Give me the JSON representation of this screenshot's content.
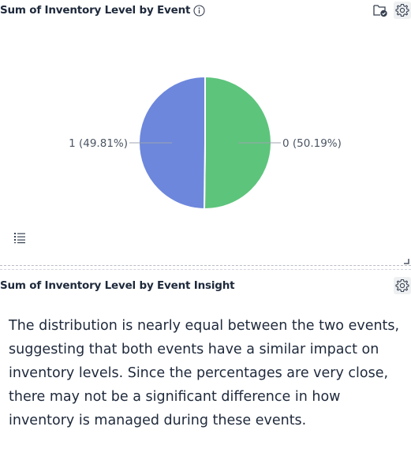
{
  "chart_panel": {
    "title": "Sum of Inventory Level by Event"
  },
  "chart_data": {
    "type": "pie",
    "title": "Sum of Inventory Level by Event",
    "slices": [
      {
        "label": "0",
        "percent": 50.19,
        "color": "#5dc47c",
        "display": "0 (50.19%)"
      },
      {
        "label": "1",
        "percent": 49.81,
        "color": "#6d87dc",
        "display": "1 (49.81%)"
      }
    ]
  },
  "insight_panel": {
    "title": "Sum of Inventory Level by Event Insight",
    "text": "The distribution is nearly equal between the two events, suggesting that both events have a similar impact on inventory levels. Since the percentages are very close, there may not be a significant difference in how inventory is managed during these events."
  },
  "icons": {
    "info": "info-icon",
    "folder_check": "folder-check-icon",
    "settings": "gear-icon",
    "legend": "list-icon",
    "resize": "resize-icon"
  }
}
